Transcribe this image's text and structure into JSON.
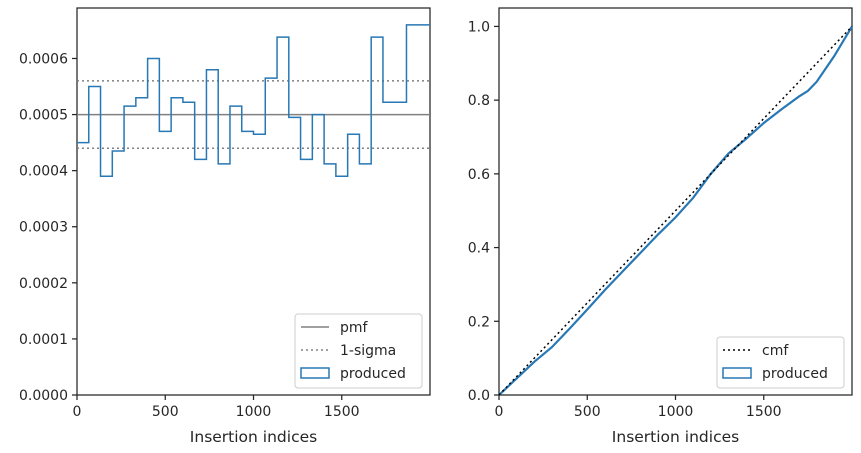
{
  "chart_data": [
    {
      "type": "step",
      "title": "",
      "xlabel": "Insertion indices",
      "ylabel": "",
      "xlim": [
        0,
        2000
      ],
      "ylim": [
        0,
        0.00069
      ],
      "xticks": [
        0,
        500,
        1000,
        1500
      ],
      "xtick_labels": [
        "0",
        "500",
        "1000",
        "1500"
      ],
      "yticks": [
        0,
        0.0001,
        0.0002,
        0.0003,
        0.0004,
        0.0005,
        0.0006
      ],
      "ytick_labels": [
        "0.0000",
        "0.0001",
        "0.0002",
        "0.0003",
        "0.0004",
        "0.0005",
        "0.0006"
      ],
      "grid": false,
      "legend_position": "lower-right",
      "reference_lines": [
        {
          "name": "pmf",
          "y": 0.0005,
          "style": "solid",
          "color": "#808080"
        },
        {
          "name": "1-sigma",
          "y": [
            0.00044,
            0.00056
          ],
          "style": "dotted",
          "color": "#808080"
        }
      ],
      "series": [
        {
          "name": "produced",
          "color": "#2878b5",
          "bin_width": 66.67,
          "values": [
            0.00045,
            0.00055,
            0.00039,
            0.000435,
            0.000515,
            0.00053,
            0.0006,
            0.00047,
            0.00053,
            0.000522,
            0.00042,
            0.00058,
            0.000412,
            0.000515,
            0.00047,
            0.000465,
            0.000565,
            0.000638,
            0.000495,
            0.00042,
            0.0005,
            0.000412,
            0.00039,
            0.000465,
            0.000412,
            0.000638,
            0.000522,
            0.000522,
            0.00066,
            0.00066
          ]
        }
      ],
      "legend": [
        "pmf",
        "1-sigma",
        "produced"
      ]
    },
    {
      "type": "line",
      "title": "",
      "xlabel": "Insertion indices",
      "ylabel": "",
      "xlim": [
        0,
        2000
      ],
      "ylim": [
        0,
        1.05
      ],
      "xticks": [
        0,
        500,
        1000,
        1500
      ],
      "xtick_labels": [
        "0",
        "500",
        "1000",
        "1500"
      ],
      "yticks": [
        0,
        0.2,
        0.4,
        0.6,
        0.8,
        1.0
      ],
      "ytick_labels": [
        "0.0",
        "0.2",
        "0.4",
        "0.6",
        "0.8",
        "1.0"
      ],
      "grid": false,
      "legend_position": "lower-right",
      "series": [
        {
          "name": "cmf",
          "style": "dotted",
          "color": "#000000",
          "x": [
            0,
            2000
          ],
          "y": [
            0,
            1.0
          ]
        },
        {
          "name": "produced",
          "color": "#2878b5",
          "x": [
            0,
            100,
            200,
            300,
            400,
            500,
            600,
            700,
            800,
            900,
            1000,
            1100,
            1200,
            1300,
            1400,
            1500,
            1600,
            1700,
            1750,
            1800,
            1900,
            2000
          ],
          "y": [
            0,
            0.045,
            0.09,
            0.13,
            0.18,
            0.232,
            0.285,
            0.335,
            0.385,
            0.435,
            0.482,
            0.535,
            0.6,
            0.655,
            0.695,
            0.738,
            0.775,
            0.81,
            0.825,
            0.85,
            0.92,
            1.0
          ]
        }
      ],
      "legend": [
        "cmf",
        "produced"
      ]
    }
  ]
}
